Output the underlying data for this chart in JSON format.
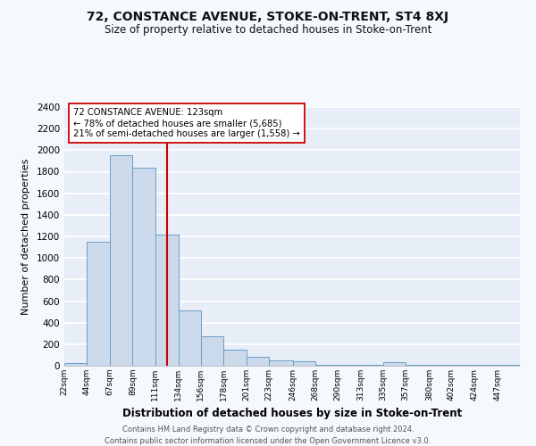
{
  "title": "72, CONSTANCE AVENUE, STOKE-ON-TRENT, ST4 8XJ",
  "subtitle": "Size of property relative to detached houses in Stoke-on-Trent",
  "xlabel": "Distribution of detached houses by size in Stoke-on-Trent",
  "ylabel": "Number of detached properties",
  "bar_edges": [
    22,
    44,
    67,
    89,
    111,
    134,
    156,
    178,
    201,
    223,
    246,
    268,
    290,
    313,
    335,
    357,
    380,
    402,
    424,
    447,
    469
  ],
  "bar_heights": [
    25,
    1150,
    1950,
    1840,
    1220,
    510,
    270,
    150,
    80,
    50,
    40,
    5,
    10,
    5,
    30,
    5,
    5,
    5,
    5,
    5
  ],
  "bar_color": "#ccd9ea",
  "bar_edge_color": "#6a9fc8",
  "property_line_x": 123,
  "property_line_color": "#cc0000",
  "annotation_title": "72 CONSTANCE AVENUE: 123sqm",
  "annotation_line1": "← 78% of detached houses are smaller (5,685)",
  "annotation_line2": "21% of semi-detached houses are larger (1,558) →",
  "annotation_box_color": "#ffffff",
  "annotation_box_edge": "#cc0000",
  "ylim": [
    0,
    2400
  ],
  "yticks": [
    0,
    200,
    400,
    600,
    800,
    1000,
    1200,
    1400,
    1600,
    1800,
    2000,
    2200,
    2400
  ],
  "bg_color": "#e8eef7",
  "plot_bg_color": "#e8eef7",
  "fig_bg_color": "#f5f8fd",
  "grid_color": "#ffffff",
  "footnote1": "Contains HM Land Registry data © Crown copyright and database right 2024.",
  "footnote2": "Contains public sector information licensed under the Open Government Licence v3.0."
}
